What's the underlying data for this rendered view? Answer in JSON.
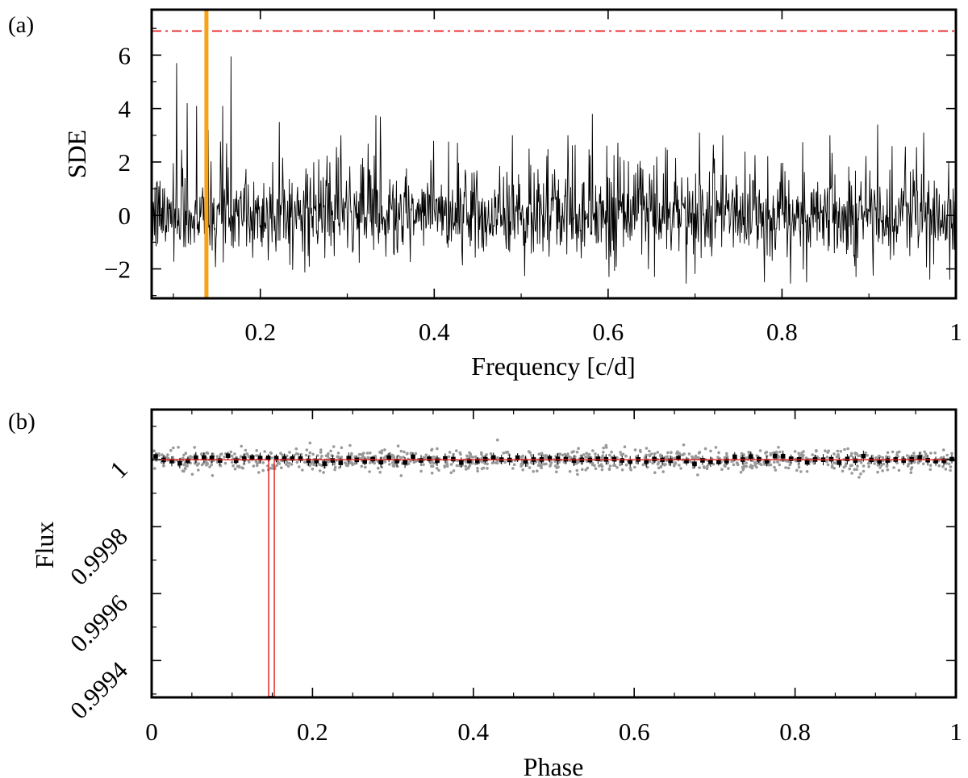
{
  "chart_data": [
    {
      "type": "line",
      "panel_label": "(a)",
      "xlabel": "Frequency [c/d]",
      "ylabel": "SDE",
      "xlim": [
        0.075,
        1.0
      ],
      "ylim": [
        -3.1,
        7.7
      ],
      "xticks": [
        0.2,
        0.4,
        0.6,
        0.8,
        1.0
      ],
      "xtick_labels": [
        "0.2",
        "0.4",
        "0.6",
        "0.8",
        "1"
      ],
      "yticks": [
        -2,
        0,
        2,
        4,
        6
      ],
      "ytick_labels": [
        "−2",
        "0",
        "2",
        "4",
        "6"
      ],
      "series": [
        {
          "name": "SDE periodogram (approximate, noise-like)",
          "color": "#000000",
          "x_start": 0.075,
          "x_end": 1.0,
          "n_points": 1450,
          "baseline_sigma": 0.75,
          "peaks": [
            {
              "x": 0.104,
              "y": 5.7
            },
            {
              "x": 0.116,
              "y": 4.2
            },
            {
              "x": 0.127,
              "y": 4.1
            },
            {
              "x": 0.14,
              "y": 3.2
            },
            {
              "x": 0.157,
              "y": 4.1
            },
            {
              "x": 0.166,
              "y": 5.95
            },
            {
              "x": 0.222,
              "y": 3.5
            },
            {
              "x": 0.293,
              "y": 3.0
            },
            {
              "x": 0.333,
              "y": 3.75
            },
            {
              "x": 0.338,
              "y": 3.7
            },
            {
              "x": 0.49,
              "y": 3.0
            },
            {
              "x": 0.582,
              "y": 3.8
            },
            {
              "x": 0.554,
              "y": 3.0
            },
            {
              "x": 0.705,
              "y": 3.1
            },
            {
              "x": 0.732,
              "y": 3.0
            },
            {
              "x": 0.855,
              "y": 3.0
            },
            {
              "x": 0.91,
              "y": 3.4
            },
            {
              "x": 0.963,
              "y": 3.1
            }
          ],
          "dips": [
            {
              "x": 0.69,
              "y": -2.55
            },
            {
              "x": 0.78,
              "y": -2.5
            },
            {
              "x": 0.81,
              "y": -2.55
            },
            {
              "x": 0.828,
              "y": -2.5
            },
            {
              "x": 0.885,
              "y": -2.3
            },
            {
              "x": 0.905,
              "y": -2.25
            },
            {
              "x": 0.97,
              "y": -2.4
            },
            {
              "x": 0.993,
              "y": -2.4
            }
          ]
        }
      ],
      "threshold": {
        "y": 6.9,
        "color": "#e8191a",
        "style": "dash-dot"
      },
      "highlight": {
        "x": 0.138,
        "color": "#f5a31a"
      }
    },
    {
      "type": "scatter",
      "panel_label": "(b)",
      "xlabel": "Phase",
      "ylabel": "Flux",
      "xlim": [
        0.0,
        1.0
      ],
      "ylim": [
        0.99929,
        1.00015
      ],
      "xticks": [
        0.0,
        0.2,
        0.4,
        0.6,
        0.8,
        1.0
      ],
      "xtick_labels": [
        "0",
        "0.2",
        "0.4",
        "0.6",
        "0.8",
        "1"
      ],
      "yticks": [
        0.9994,
        0.9996,
        0.9998,
        1.0
      ],
      "ytick_labels": [
        "0.9994",
        "0.9996",
        "0.9998",
        "1"
      ],
      "series": [
        {
          "name": "unbinned photometry (approximate)",
          "color": "#999999",
          "n_points": 1100,
          "mean": 0.999999,
          "sigma": 1.6e-05
        },
        {
          "name": "binned data (approximate)",
          "color": "#000000",
          "n_bins": 100,
          "mean": 1.0,
          "sigma": 5.5e-06
        },
        {
          "name": "transit model",
          "color": "#e8191a",
          "baseline": 1.0,
          "depth_flux": 0.999293,
          "ingress_phase": 0.1455,
          "egress_phase": 0.1525
        }
      ]
    }
  ]
}
